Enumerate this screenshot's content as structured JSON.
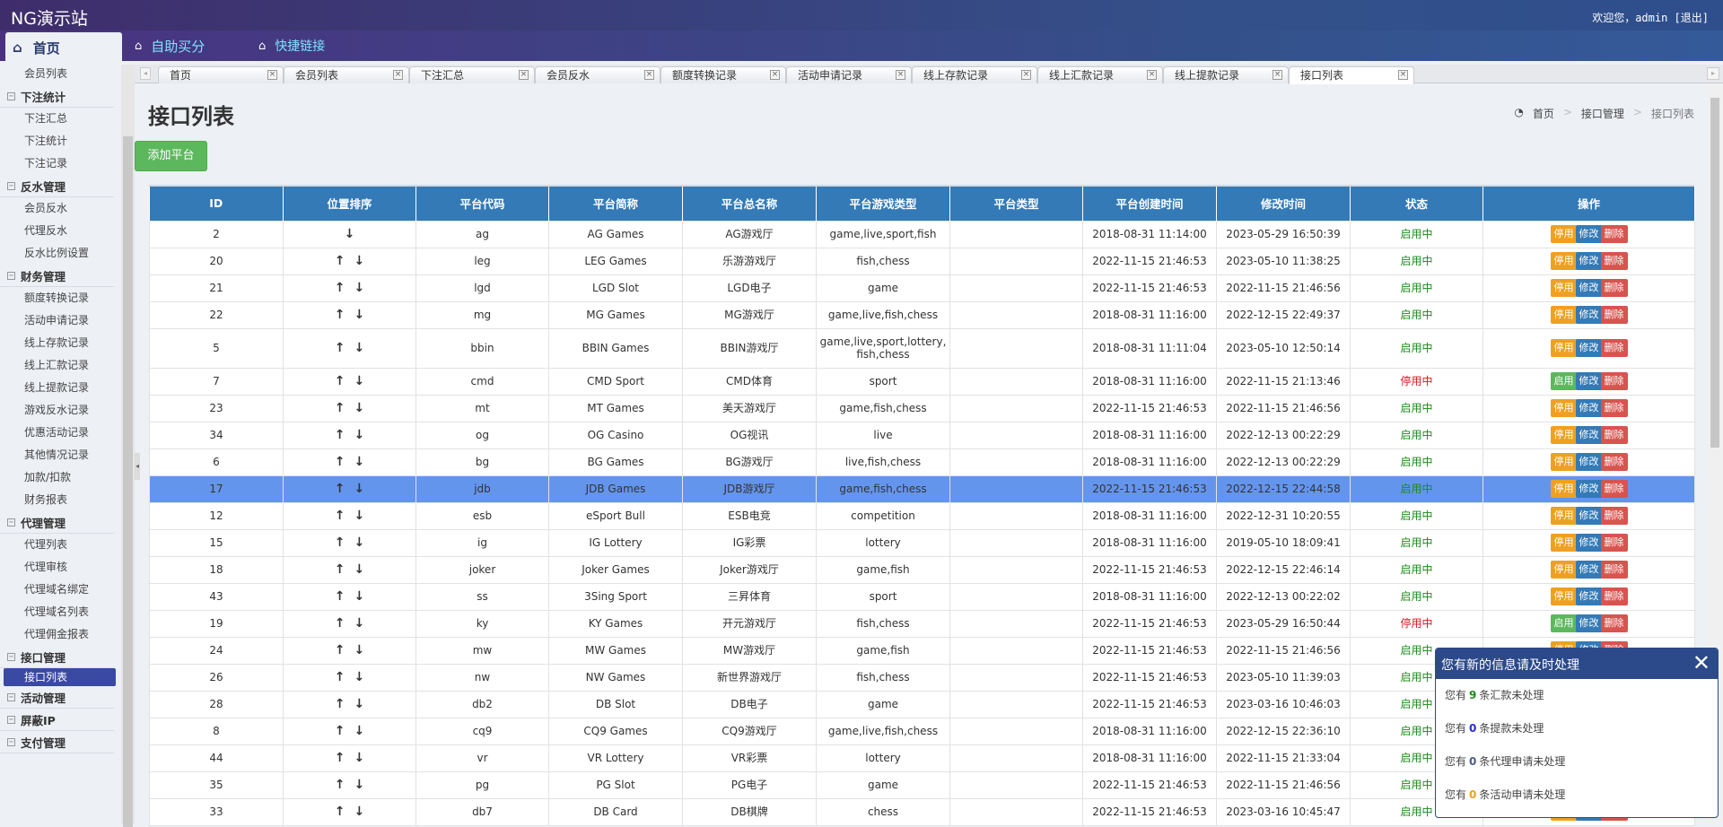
{
  "header": {
    "site_title": "NG演示站",
    "welcome": "欢迎您，admin [退出]"
  },
  "nav": {
    "home": "首页",
    "self_score": "自助买分",
    "quick_links": "快捷链接"
  },
  "sidebar": {
    "groups": [
      {
        "label": "",
        "items": [
          "会员列表"
        ]
      },
      {
        "label": "下注统计",
        "items": [
          "下注汇总",
          "下注统计",
          "下注记录"
        ]
      },
      {
        "label": "反水管理",
        "items": [
          "会员反水",
          "代理反水",
          "反水比例设置"
        ]
      },
      {
        "label": "财务管理",
        "items": [
          "额度转换记录",
          "活动申请记录",
          "线上存款记录",
          "线上汇款记录",
          "线上提款记录",
          "游戏反水记录",
          "优惠活动记录",
          "其他情况记录",
          "加款/扣款",
          "财务报表"
        ]
      },
      {
        "label": "代理管理",
        "items": [
          "代理列表",
          "代理审核",
          "代理域名绑定",
          "代理域名列表",
          "代理佣金报表"
        ]
      },
      {
        "label": "接口管理",
        "items": [
          "接口列表"
        ]
      },
      {
        "label": "活动管理",
        "items": []
      },
      {
        "label": "屏蔽IP",
        "items": []
      },
      {
        "label": "支付管理",
        "items": []
      }
    ],
    "active": "接口列表"
  },
  "tabs": [
    "首页",
    "会员列表",
    "下注汇总",
    "会员反水",
    "额度转换记录",
    "活动申请记录",
    "线上存款记录",
    "线上汇款记录",
    "线上提款记录",
    "接口列表"
  ],
  "active_tab": "接口列表",
  "page": {
    "title": "接口列表",
    "breadcrumb": [
      "首页",
      "接口管理",
      "接口列表"
    ],
    "add_button": "添加平台"
  },
  "table": {
    "columns": [
      "ID",
      "位置排序",
      "平台代码",
      "平台简称",
      "平台总名称",
      "平台游戏类型",
      "平台类型",
      "平台创建时间",
      "修改时间",
      "状态",
      "操作"
    ],
    "status_labels": {
      "on": "启用中",
      "off": "停用中"
    },
    "action_labels": {
      "stop": "停用",
      "start": "启用",
      "edit": "修改",
      "delete": "删除"
    },
    "selected_id": "17",
    "rows": [
      {
        "id": "2",
        "code": "ag",
        "short": "AG Games",
        "name": "AG游戏厅",
        "types": "game,live,sport,fish",
        "ptype": "",
        "created": "2018-08-31 11:14:00",
        "modified": "2023-05-29 16:50:39",
        "enabled": true
      },
      {
        "id": "20",
        "code": "leg",
        "short": "LEG Games",
        "name": "乐游游戏厅",
        "types": "fish,chess",
        "ptype": "",
        "created": "2022-11-15 21:46:53",
        "modified": "2023-05-10 11:38:25",
        "enabled": true
      },
      {
        "id": "21",
        "code": "lgd",
        "short": "LGD Slot",
        "name": "LGD电子",
        "types": "game",
        "ptype": "",
        "created": "2022-11-15 21:46:53",
        "modified": "2022-11-15 21:46:56",
        "enabled": true
      },
      {
        "id": "22",
        "code": "mg",
        "short": "MG Games",
        "name": "MG游戏厅",
        "types": "game,live,fish,chess",
        "ptype": "",
        "created": "2018-08-31 11:16:00",
        "modified": "2022-12-15 22:49:37",
        "enabled": true
      },
      {
        "id": "5",
        "code": "bbin",
        "short": "BBIN Games",
        "name": "BBIN游戏厅",
        "types": "game,live,sport,lottery,fish,chess",
        "ptype": "",
        "created": "2018-08-31 11:11:04",
        "modified": "2023-05-10 12:50:14",
        "enabled": true
      },
      {
        "id": "7",
        "code": "cmd",
        "short": "CMD Sport",
        "name": "CMD体育",
        "types": "sport",
        "ptype": "",
        "created": "2018-08-31 11:16:00",
        "modified": "2022-11-15 21:13:46",
        "enabled": false
      },
      {
        "id": "23",
        "code": "mt",
        "short": "MT Games",
        "name": "美天游戏厅",
        "types": "game,fish,chess",
        "ptype": "",
        "created": "2022-11-15 21:46:53",
        "modified": "2022-11-15 21:46:56",
        "enabled": true
      },
      {
        "id": "34",
        "code": "og",
        "short": "OG Casino",
        "name": "OG视讯",
        "types": "live",
        "ptype": "",
        "created": "2018-08-31 11:16:00",
        "modified": "2022-12-13 00:22:29",
        "enabled": true
      },
      {
        "id": "6",
        "code": "bg",
        "short": "BG Games",
        "name": "BG游戏厅",
        "types": "live,fish,chess",
        "ptype": "",
        "created": "2018-08-31 11:16:00",
        "modified": "2022-12-13 00:22:29",
        "enabled": true
      },
      {
        "id": "17",
        "code": "jdb",
        "short": "JDB Games",
        "name": "JDB游戏厅",
        "types": "game,fish,chess",
        "ptype": "",
        "created": "2022-11-15 21:46:53",
        "modified": "2022-12-15 22:44:58",
        "enabled": true
      },
      {
        "id": "12",
        "code": "esb",
        "short": "eSport Bull",
        "name": "ESB电竞",
        "types": "competition",
        "ptype": "",
        "created": "2018-08-31 11:16:00",
        "modified": "2022-12-31 10:20:55",
        "enabled": true
      },
      {
        "id": "15",
        "code": "ig",
        "short": "IG Lottery",
        "name": "IG彩票",
        "types": "lottery",
        "ptype": "",
        "created": "2018-08-31 11:16:00",
        "modified": "2019-05-10 18:09:41",
        "enabled": true
      },
      {
        "id": "18",
        "code": "joker",
        "short": "Joker Games",
        "name": "Joker游戏厅",
        "types": "game,fish",
        "ptype": "",
        "created": "2022-11-15 21:46:53",
        "modified": "2022-12-15 22:46:14",
        "enabled": true
      },
      {
        "id": "43",
        "code": "ss",
        "short": "3Sing Sport",
        "name": "三昇体育",
        "types": "sport",
        "ptype": "",
        "created": "2018-08-31 11:16:00",
        "modified": "2022-12-13 00:22:02",
        "enabled": true
      },
      {
        "id": "19",
        "code": "ky",
        "short": "KY Games",
        "name": "开元游戏厅",
        "types": "fish,chess",
        "ptype": "",
        "created": "2022-11-15 21:46:53",
        "modified": "2023-05-29 16:50:44",
        "enabled": false
      },
      {
        "id": "24",
        "code": "mw",
        "short": "MW Games",
        "name": "MW游戏厅",
        "types": "game,fish",
        "ptype": "",
        "created": "2022-11-15 21:46:53",
        "modified": "2022-11-15 21:46:56",
        "enabled": true
      },
      {
        "id": "26",
        "code": "nw",
        "short": "NW Games",
        "name": "新世界游戏厅",
        "types": "fish,chess",
        "ptype": "",
        "created": "2022-11-15 21:46:53",
        "modified": "2023-05-10 11:39:03",
        "enabled": true
      },
      {
        "id": "28",
        "code": "db2",
        "short": "DB Slot",
        "name": "DB电子",
        "types": "game",
        "ptype": "",
        "created": "2022-11-15 21:46:53",
        "modified": "2023-03-16 10:46:03",
        "enabled": true
      },
      {
        "id": "8",
        "code": "cq9",
        "short": "CQ9 Games",
        "name": "CQ9游戏厅",
        "types": "game,live,fish,chess",
        "ptype": "",
        "created": "2018-08-31 11:16:00",
        "modified": "2022-12-15 22:36:10",
        "enabled": true
      },
      {
        "id": "44",
        "code": "vr",
        "short": "VR Lottery",
        "name": "VR彩票",
        "types": "lottery",
        "ptype": "",
        "created": "2018-08-31 11:16:00",
        "modified": "2022-11-15 21:33:04",
        "enabled": true
      },
      {
        "id": "35",
        "code": "pg",
        "short": "PG Slot",
        "name": "PG电子",
        "types": "game",
        "ptype": "",
        "created": "2022-11-15 21:46:53",
        "modified": "2022-11-15 21:46:56",
        "enabled": true
      },
      {
        "id": "33",
        "code": "db7",
        "short": "DB Card",
        "name": "DB棋牌",
        "types": "chess",
        "ptype": "",
        "created": "2022-11-15 21:46:53",
        "modified": "2023-03-16 10:45:47",
        "enabled": true
      }
    ]
  },
  "popup": {
    "title": "您有新的信息请及时处理",
    "messages": [
      {
        "prefix": "您有",
        "count": "9",
        "suffix": "条汇款未处理",
        "color": "#1a8c1a"
      },
      {
        "prefix": "您有",
        "count": "0",
        "suffix": "条提款未处理",
        "color": "#2b2bd0"
      },
      {
        "prefix": "您有",
        "count": "0",
        "suffix": "条代理申请未处理",
        "color": "#4a5a8a"
      },
      {
        "prefix": "您有",
        "count": "0",
        "suffix": "条活动申请未处理",
        "color": "#f0a020"
      }
    ]
  },
  "colors": {
    "header_blue": "#337ab7",
    "selected_row": "#6495ed",
    "enabled": "#1a8c1a",
    "disabled": "#e0141e"
  }
}
